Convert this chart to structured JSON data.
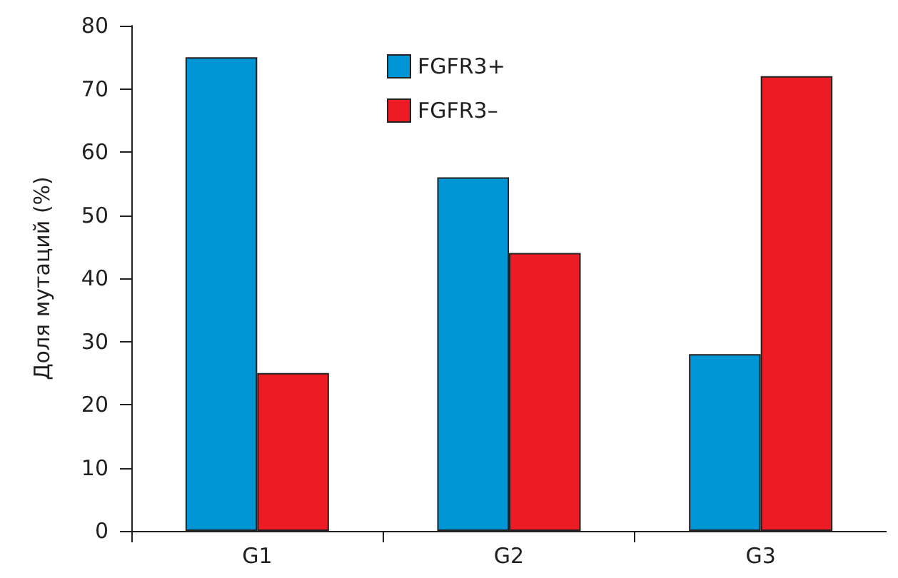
{
  "chart_data": {
    "type": "bar",
    "ylabel": "Доля мутаций (%)",
    "categories": [
      "G1",
      "G2",
      "G3"
    ],
    "series": [
      {
        "name": "FGFR3+",
        "color": "#0096d6",
        "values": [
          75,
          56,
          28
        ]
      },
      {
        "name": "FGFR3–",
        "color": "#ed1c24",
        "values": [
          25,
          44,
          72
        ]
      }
    ],
    "ylim": [
      0,
      80
    ],
    "yticks": [
      0,
      10,
      20,
      30,
      40,
      50,
      60,
      70,
      80
    ],
    "grid": false,
    "legend": "top"
  }
}
